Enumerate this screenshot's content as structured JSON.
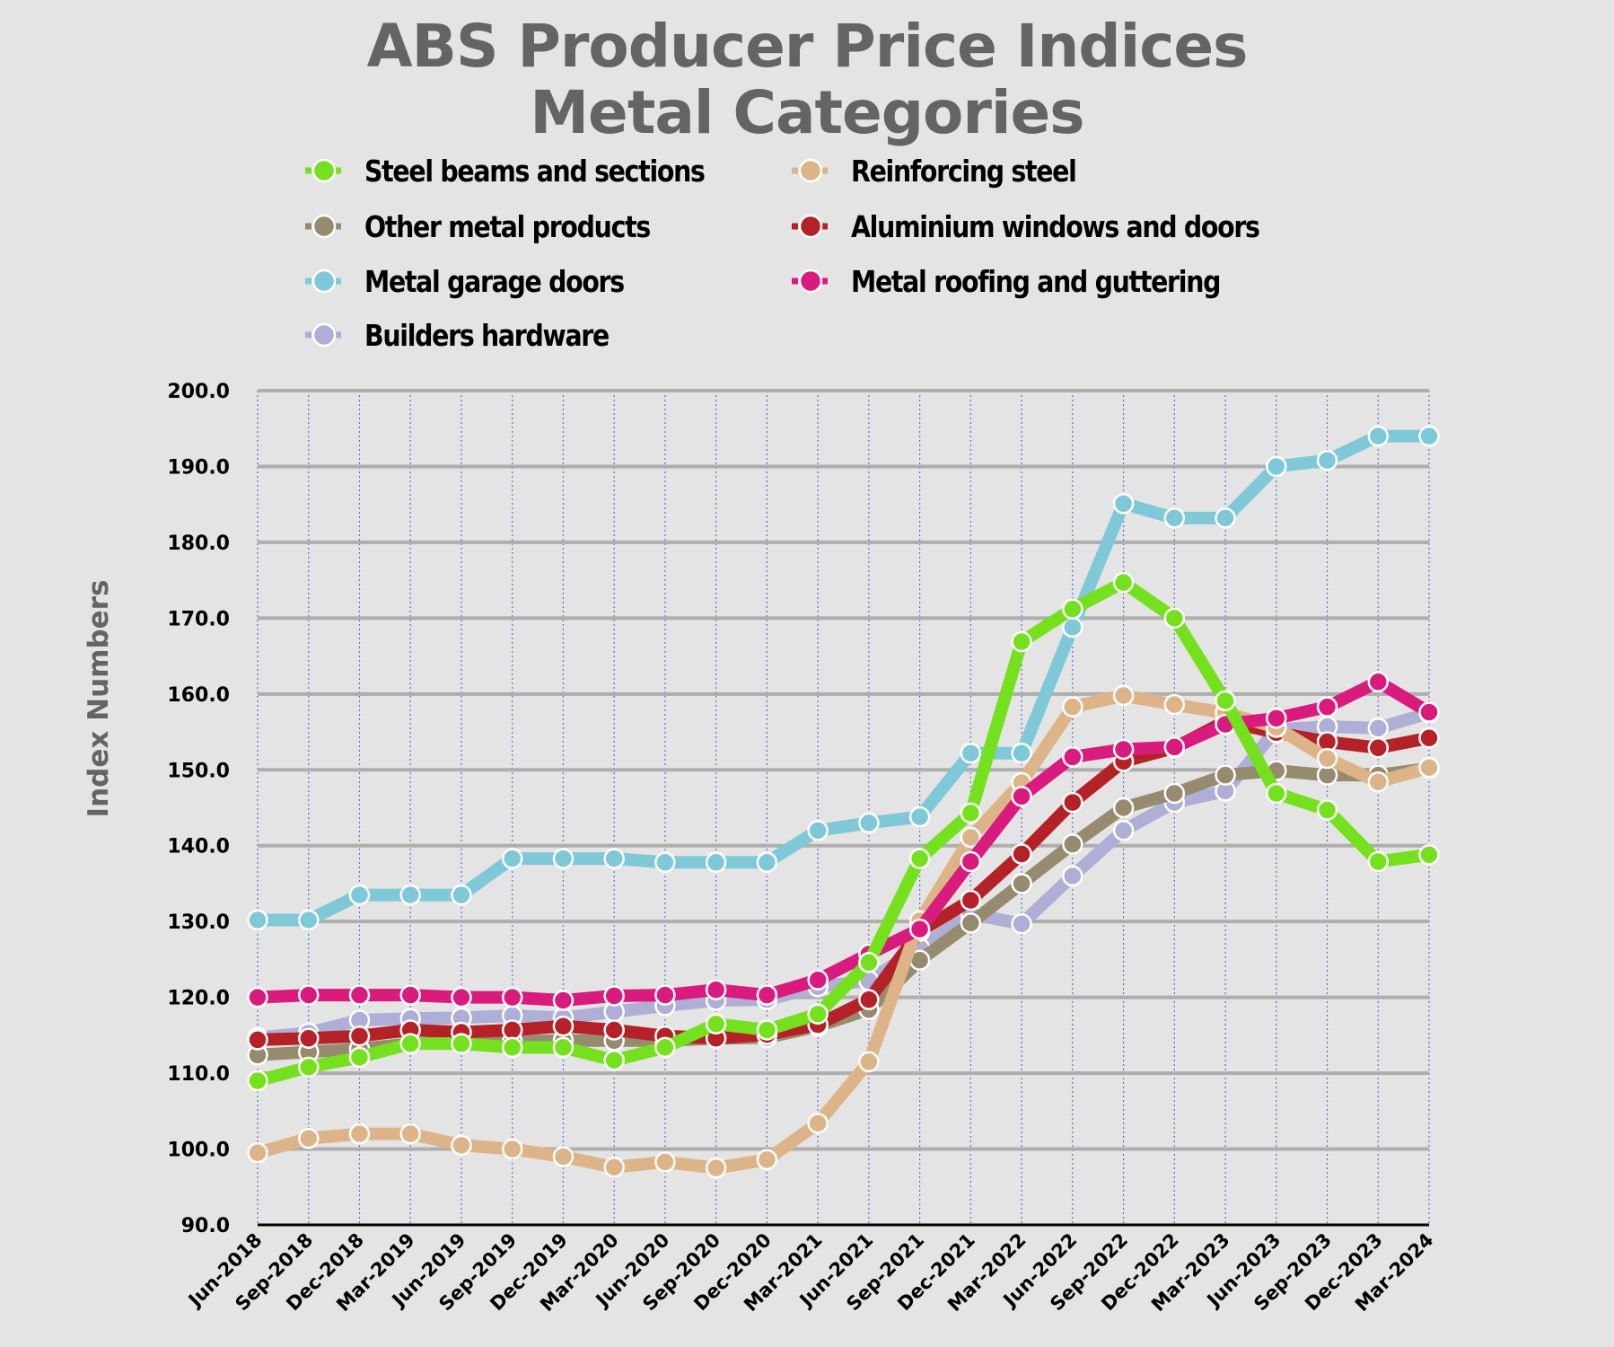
{
  "chart_data": {
    "type": "line",
    "title": "ABS Producer Price Indices",
    "subtitle": "Metal Categories",
    "xlabel": "",
    "ylabel": "Index Numbers",
    "ylim": [
      90,
      200
    ],
    "yticks": [
      "90.0",
      "100.0",
      "110.0",
      "120.0",
      "130.0",
      "140.0",
      "150.0",
      "160.0",
      "170.0",
      "180.0",
      "190.0",
      "200.0"
    ],
    "grid": "on",
    "legend_position": "top",
    "categories": [
      "Jun-2018",
      "Sep-2018",
      "Dec-2018",
      "Mar-2019",
      "Jun-2019",
      "Sep-2019",
      "Dec-2019",
      "Mar-2020",
      "Jun-2020",
      "Sep-2020",
      "Dec-2020",
      "Mar-2021",
      "Jun-2021",
      "Sep-2021",
      "Dec-2021",
      "Mar-2022",
      "Jun-2022",
      "Sep-2022",
      "Dec-2022",
      "Mar-2023",
      "Jun-2023",
      "Sep-2023",
      "Dec-2023",
      "Mar-2024"
    ],
    "series": [
      {
        "name": "Metal garage doors",
        "color": "#7ec8d8",
        "values": [
          130.2,
          130.2,
          133.5,
          133.5,
          133.5,
          138.3,
          138.3,
          138.3,
          137.8,
          137.8,
          137.8,
          142.0,
          143.0,
          143.8,
          152.2,
          152.2,
          168.8,
          185.1,
          183.2,
          183.2,
          190.0,
          190.8,
          194.0,
          194.0
        ]
      },
      {
        "name": "Builders hardware",
        "color": "#aeaed6",
        "values": [
          114.7,
          115.3,
          117.0,
          117.2,
          117.3,
          117.6,
          117.3,
          118.1,
          118.9,
          119.6,
          119.7,
          121.4,
          122.2,
          126.5,
          131.0,
          129.7,
          136.0,
          142.0,
          145.7,
          147.2,
          155.3,
          155.7,
          155.5,
          157.5
        ]
      },
      {
        "name": "Other metal products",
        "color": "#968b6e",
        "values": [
          112.4,
          112.8,
          113.2,
          113.9,
          114.0,
          114.2,
          114.3,
          114.3,
          114.3,
          114.6,
          114.7,
          116.2,
          118.4,
          124.9,
          129.8,
          135.0,
          140.2,
          145.0,
          146.9,
          149.3,
          149.9,
          149.3,
          149.3,
          150.2
        ]
      },
      {
        "name": "Aluminium windows and doors",
        "color": "#b42228",
        "values": [
          114.4,
          114.6,
          114.9,
          115.7,
          115.4,
          115.7,
          116.2,
          115.7,
          114.9,
          114.6,
          115.1,
          116.4,
          119.7,
          128.7,
          132.8,
          138.9,
          145.7,
          151.1,
          152.9,
          156.4,
          154.9,
          153.7,
          152.9,
          154.2
        ]
      },
      {
        "name": "Reinforcing steel",
        "color": "#dcb487",
        "values": [
          99.5,
          101.4,
          102.0,
          102.0,
          100.5,
          100.0,
          99.0,
          97.6,
          98.3,
          97.5,
          98.6,
          103.4,
          111.5,
          130.1,
          141.1,
          148.3,
          158.3,
          159.8,
          158.6,
          157.5,
          155.6,
          151.5,
          148.4,
          150.3
        ]
      },
      {
        "name": "Metal roofing and guttering",
        "color": "#d81b7d",
        "values": [
          120.0,
          120.3,
          120.3,
          120.3,
          120.0,
          120.0,
          119.6,
          120.2,
          120.3,
          121.0,
          120.3,
          122.3,
          125.7,
          129.0,
          137.9,
          146.5,
          151.7,
          152.7,
          153.0,
          156.0,
          156.8,
          158.3,
          161.6,
          157.6
        ]
      },
      {
        "name": "Steel beams and sections",
        "color": "#74e01e",
        "values": [
          109.0,
          110.8,
          112.1,
          113.9,
          113.9,
          113.4,
          113.4,
          111.7,
          113.4,
          116.5,
          115.7,
          117.8,
          124.6,
          138.3,
          144.3,
          166.9,
          171.2,
          174.7,
          170.0,
          159.1,
          146.9,
          144.7,
          137.9,
          138.8
        ]
      }
    ],
    "legend": [
      {
        "name": "Steel beams and sections",
        "color": "#74e01e"
      },
      {
        "name": "Reinforcing steel",
        "color": "#dcb487"
      },
      {
        "name": "Other metal products",
        "color": "#968b6e"
      },
      {
        "name": "Aluminium windows and doors",
        "color": "#b42228"
      },
      {
        "name": "Metal garage doors",
        "color": "#7ec8d8"
      },
      {
        "name": "Metal roofing and guttering",
        "color": "#d81b7d"
      },
      {
        "name": "Builders hardware",
        "color": "#aeaed6"
      }
    ]
  }
}
